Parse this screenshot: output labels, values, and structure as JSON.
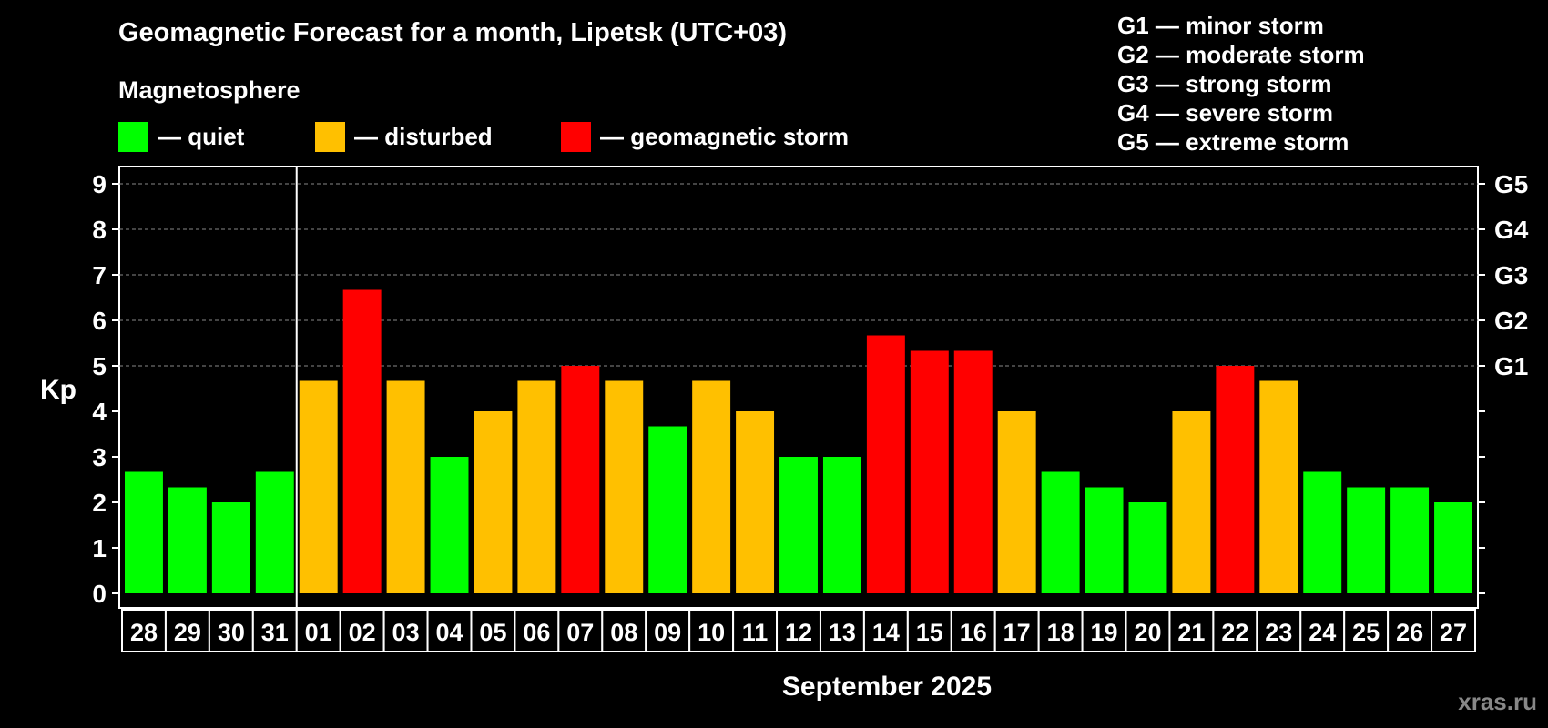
{
  "title": "Geomagnetic Forecast for a month, Lipetsk (UTC+03)",
  "magnetosphere_label": "Magnetosphere",
  "legend": [
    {
      "label": "— quiet",
      "color": "#00ff00"
    },
    {
      "label": "— disturbed",
      "color": "#ffc000"
    },
    {
      "label": "— geomagnetic storm",
      "color": "#ff0000"
    }
  ],
  "g_legend": [
    "G1 — minor storm",
    "G2 — moderate storm",
    "G3 — strong storm",
    "G4 — severe storm",
    "G5 — extreme storm"
  ],
  "watermark": "xras.ru",
  "chart_data": {
    "type": "bar",
    "title": "Geomagnetic Forecast for a month, Lipetsk (UTC+03)",
    "ylabel": "Kp",
    "xlabel": "September 2025",
    "ylim": [
      0,
      9
    ],
    "yticks": [
      0,
      1,
      2,
      3,
      4,
      5,
      6,
      7,
      8,
      9
    ],
    "right_axis_labels": [
      {
        "value": 5,
        "label": "G1"
      },
      {
        "value": 6,
        "label": "G2"
      },
      {
        "value": 7,
        "label": "G3"
      },
      {
        "value": 8,
        "label": "G4"
      },
      {
        "value": 9,
        "label": "G5"
      }
    ],
    "grid": "dashed horizontal at 5-9",
    "month_boundary_after": "31",
    "categories": [
      "28",
      "29",
      "30",
      "31",
      "01",
      "02",
      "03",
      "04",
      "05",
      "06",
      "07",
      "08",
      "09",
      "10",
      "11",
      "12",
      "13",
      "14",
      "15",
      "16",
      "17",
      "18",
      "19",
      "20",
      "21",
      "22",
      "23",
      "24",
      "25",
      "26",
      "27"
    ],
    "values": [
      2.67,
      2.33,
      2.0,
      2.67,
      4.67,
      6.67,
      4.67,
      3.0,
      4.0,
      4.67,
      5.0,
      4.67,
      3.67,
      4.67,
      4.0,
      3.0,
      3.0,
      5.67,
      5.33,
      5.33,
      4.0,
      2.67,
      2.33,
      2.0,
      4.0,
      5.0,
      4.67,
      2.67,
      2.33,
      2.33,
      2.0
    ],
    "levels": [
      "quiet",
      "quiet",
      "quiet",
      "quiet",
      "disturbed",
      "storm",
      "disturbed",
      "quiet",
      "disturbed",
      "disturbed",
      "storm",
      "disturbed",
      "quiet",
      "disturbed",
      "disturbed",
      "quiet",
      "quiet",
      "storm",
      "storm",
      "storm",
      "disturbed",
      "quiet",
      "quiet",
      "quiet",
      "disturbed",
      "storm",
      "disturbed",
      "quiet",
      "quiet",
      "quiet",
      "quiet"
    ],
    "level_colors": {
      "quiet": "#00ff00",
      "disturbed": "#ffc000",
      "storm": "#ff0000"
    }
  }
}
